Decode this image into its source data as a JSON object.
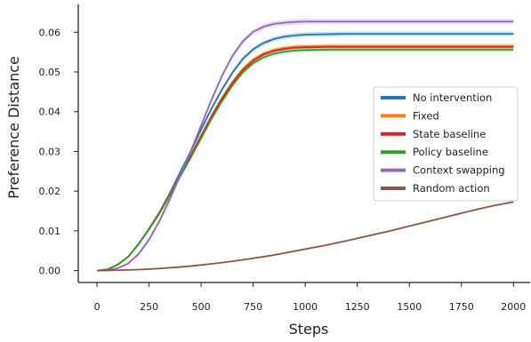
{
  "chart_data": {
    "type": "line",
    "title": "",
    "xlabel": "Steps",
    "ylabel": "Preference Distance",
    "xlim": [
      -90,
      2080
    ],
    "ylim": [
      -0.003,
      0.067
    ],
    "x_ticks": [
      0,
      250,
      500,
      750,
      1000,
      1250,
      1500,
      1750,
      2000
    ],
    "y_ticks": [
      0.0,
      0.01,
      0.02,
      0.03,
      0.04,
      0.05,
      0.06
    ],
    "x_tick_labels": [
      "0",
      "250",
      "500",
      "750",
      "1000",
      "1250",
      "1500",
      "1750",
      "2000"
    ],
    "y_tick_labels": [
      "0.00",
      "0.01",
      "0.02",
      "0.03",
      "0.04",
      "0.05",
      "0.06"
    ],
    "grid": false,
    "legend_position": "center-right",
    "x": [
      0,
      50,
      100,
      150,
      200,
      250,
      300,
      350,
      400,
      450,
      500,
      550,
      600,
      650,
      700,
      750,
      800,
      850,
      900,
      950,
      1000,
      1100,
      1200,
      1300,
      1400,
      1500,
      1600,
      1700,
      1800,
      1900,
      2000
    ],
    "series": [
      {
        "name": "No intervention",
        "color": "#1f77b4",
        "values": [
          0.0,
          0.0003,
          0.0015,
          0.0035,
          0.0067,
          0.0105,
          0.0146,
          0.0195,
          0.0248,
          0.03,
          0.0355,
          0.0408,
          0.0456,
          0.0498,
          0.0533,
          0.0557,
          0.0573,
          0.0583,
          0.0589,
          0.0592,
          0.0594,
          0.0595,
          0.0596,
          0.0596,
          0.0596,
          0.0596,
          0.0596,
          0.0596,
          0.0596,
          0.0596,
          0.0596
        ],
        "band": 0.0006
      },
      {
        "name": "Fixed",
        "color": "#ff7f0e",
        "values": [
          0.0,
          0.0003,
          0.0015,
          0.0035,
          0.0067,
          0.0105,
          0.0146,
          0.0192,
          0.0242,
          0.029,
          0.034,
          0.039,
          0.0435,
          0.0475,
          0.0508,
          0.0532,
          0.0547,
          0.0556,
          0.0561,
          0.0564,
          0.0565,
          0.0566,
          0.0566,
          0.0566,
          0.0566,
          0.0566,
          0.0566,
          0.0566,
          0.0566,
          0.0566,
          0.0566
        ],
        "band": 0.0005
      },
      {
        "name": "State baseline",
        "color": "#d62728",
        "values": [
          0.0,
          0.0003,
          0.0015,
          0.0035,
          0.0067,
          0.0105,
          0.0146,
          0.0192,
          0.0241,
          0.0289,
          0.0338,
          0.0388,
          0.0432,
          0.0472,
          0.0505,
          0.0528,
          0.0544,
          0.0553,
          0.0558,
          0.0561,
          0.0562,
          0.0563,
          0.0563,
          0.0563,
          0.0563,
          0.0563,
          0.0563,
          0.0563,
          0.0563,
          0.0563,
          0.0563
        ],
        "band": 0.0005
      },
      {
        "name": "Policy baseline",
        "color": "#2ca02c",
        "values": [
          0.0,
          0.0003,
          0.0015,
          0.0035,
          0.0067,
          0.0104,
          0.0144,
          0.0189,
          0.0237,
          0.0284,
          0.0333,
          0.0382,
          0.0426,
          0.0466,
          0.0499,
          0.0522,
          0.0537,
          0.0546,
          0.0551,
          0.0554,
          0.0555,
          0.0556,
          0.0556,
          0.0556,
          0.0556,
          0.0556,
          0.0556,
          0.0556,
          0.0556,
          0.0556,
          0.0556
        ],
        "band": 0.0005
      },
      {
        "name": "Context swapping",
        "color": "#9467bd",
        "values": [
          0.0,
          0.0001,
          0.0006,
          0.0018,
          0.0042,
          0.0078,
          0.0125,
          0.018,
          0.024,
          0.03,
          0.0365,
          0.043,
          0.049,
          0.054,
          0.0577,
          0.0601,
          0.0614,
          0.0621,
          0.0624,
          0.0626,
          0.0627,
          0.0627,
          0.0627,
          0.0627,
          0.0627,
          0.0627,
          0.0627,
          0.0627,
          0.0627,
          0.0627,
          0.0627
        ],
        "band": 0.0007
      },
      {
        "name": "Random action",
        "color": "#8c564b",
        "values": [
          0.0,
          3e-05,
          0.0001,
          0.00016,
          0.00025,
          0.00037,
          0.00052,
          0.0007,
          0.0009,
          0.00112,
          0.0014,
          0.0017,
          0.002,
          0.00235,
          0.0027,
          0.0031,
          0.0035,
          0.0039,
          0.0044,
          0.0049,
          0.0054,
          0.0064,
          0.0075,
          0.0087,
          0.0099,
          0.0112,
          0.0125,
          0.0138,
          0.0151,
          0.0163,
          0.0173
        ],
        "band": 0.0002
      }
    ]
  }
}
